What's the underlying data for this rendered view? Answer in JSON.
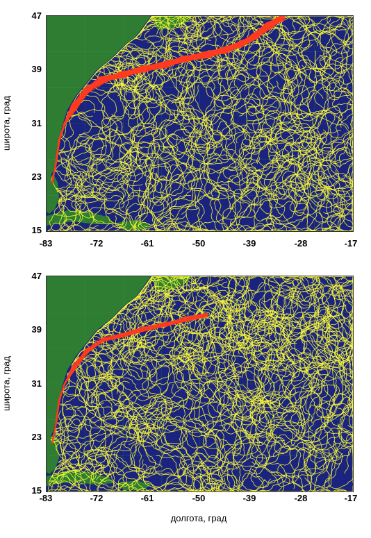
{
  "panels": [
    {
      "id": "top",
      "ylabel": "широта, град",
      "xlabel": "",
      "yticks": [
        "47",
        "39",
        "31",
        "23",
        "15"
      ],
      "xticks": [
        "-83",
        "-72",
        "-61",
        "-50",
        "-39",
        "-28",
        "-17"
      ]
    },
    {
      "id": "bottom",
      "ylabel": "широта, град",
      "xlabel": "долгота, град",
      "yticks": [
        "47",
        "39",
        "31",
        "23",
        "15"
      ],
      "xticks": [
        "-83",
        "-72",
        "-61",
        "-50",
        "-39",
        "-28",
        "-17"
      ]
    }
  ],
  "map": {
    "lon_range": [
      -83,
      -17
    ],
    "lat_range": [
      15,
      47
    ],
    "colors": {
      "ocean": "#1a237e",
      "land": "#2e7d32",
      "drifter_tracks": "#ffff33",
      "gulf_stream_tracks": "#ff3b1f",
      "coastline": "#6fa8dc"
    }
  }
}
